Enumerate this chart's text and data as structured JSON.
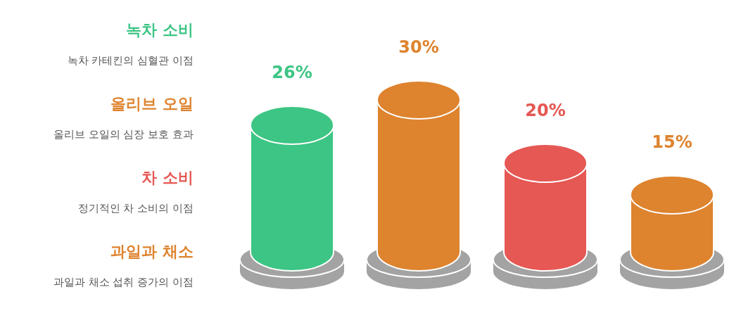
{
  "chart_data": {
    "type": "bar",
    "categories": [
      null,
      null,
      null,
      null
    ],
    "values": [
      26,
      30,
      20,
      15
    ],
    "colors": [
      "#3cc584",
      "#de832e",
      "#e55854",
      "#de832e"
    ],
    "value_labels": [
      "26%",
      "30%",
      "20%",
      "15%"
    ],
    "annotations": [
      "녹차 소비",
      "녹차 카테킨의 심혈관 이점",
      "올리브 오일",
      "올리브 오일의 심장 보호 효과",
      "차 소비",
      "정기적인 차 소비의 이점",
      "과일과 채소",
      "과일과 채소 섭취 증가의 이점"
    ]
  }
}
